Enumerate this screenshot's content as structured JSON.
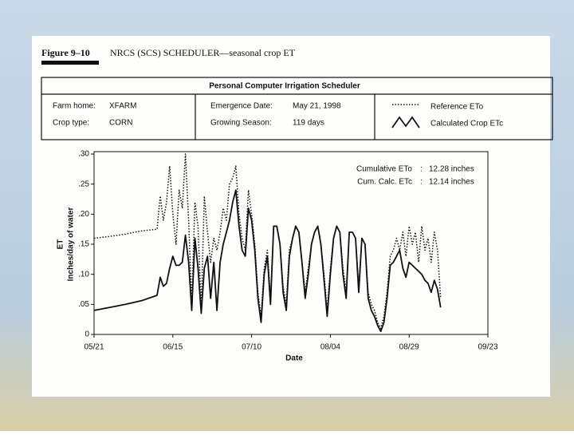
{
  "figure_label": "Figure 9–10",
  "figure_title": "NRCS (SCS) SCHEDULER—seasonal crop ET",
  "panel_title": "Personal Computer Irrigation Scheduler",
  "info": {
    "farm_home_label": "Farm home:",
    "farm_home": "XFARM",
    "crop_type_label": "Crop type:",
    "crop_type": "CORN",
    "emergence_label": "Emergence Date:",
    "emergence": "May 21, 1998",
    "season_label": "Growing Season:",
    "season": "119 days"
  },
  "chart_data": {
    "type": "line",
    "xlabel": "Date",
    "ylabel": [
      "ET",
      "Inches/day of water"
    ],
    "annotations": [
      {
        "label": "Cumulative ETo",
        "value": "12.28 inches"
      },
      {
        "label": "Cum. Calc. ETc",
        "value": "12.14 inches"
      }
    ],
    "xlim": [
      0,
      125
    ],
    "xticks": [
      {
        "value": 0,
        "label": "05/21"
      },
      {
        "value": 25,
        "label": "06/15"
      },
      {
        "value": 50,
        "label": "07/10"
      },
      {
        "value": 75,
        "label": "08/04"
      },
      {
        "value": 100,
        "label": "08/29"
      },
      {
        "value": 125,
        "label": "09/23"
      }
    ],
    "ylim": [
      0,
      0.3
    ],
    "yticks": [
      0,
      {
        "value": 0.05,
        "label": ".05"
      },
      {
        "value": 0.1,
        "label": ".10"
      },
      {
        "value": 0.15,
        "label": ".15"
      },
      {
        "value": 0.2,
        "label": ".20"
      },
      {
        "value": 0.25,
        "label": ".25"
      },
      {
        "value": 0.3,
        "label": ".30"
      }
    ],
    "x": [
      0,
      5,
      10,
      15,
      20,
      21,
      22,
      23,
      24,
      25,
      26,
      27,
      28,
      29,
      30,
      31,
      32,
      33,
      34,
      35,
      36,
      37,
      38,
      39,
      40,
      41,
      42,
      43,
      44,
      45,
      46,
      47,
      48,
      49,
      50,
      51,
      52,
      53,
      54,
      55,
      56,
      57,
      58,
      59,
      60,
      61,
      62,
      63,
      64,
      65,
      66,
      67,
      68,
      69,
      70,
      71,
      72,
      73,
      74,
      75,
      76,
      77,
      78,
      79,
      80,
      81,
      82,
      83,
      84,
      85,
      86,
      87,
      88,
      89,
      90,
      91,
      92,
      93,
      94,
      95,
      96,
      97,
      98,
      99,
      100,
      101,
      102,
      103,
      104,
      105,
      106,
      107,
      108,
      109,
      110
    ],
    "series": [
      {
        "name": "Reference ETo",
        "color": "#111111",
        "dash": "dotted",
        "values": [
          0.16,
          0.163,
          0.167,
          0.172,
          0.175,
          0.23,
          0.19,
          0.22,
          0.28,
          0.2,
          0.15,
          0.24,
          0.21,
          0.3,
          0.19,
          0.05,
          0.22,
          0.18,
          0.04,
          0.23,
          0.17,
          0.12,
          0.16,
          0.14,
          0.17,
          0.21,
          0.19,
          0.25,
          0.26,
          0.28,
          0.2,
          0.16,
          0.14,
          0.24,
          0.2,
          0.15,
          0.07,
          0.03,
          0.11,
          0.14,
          0.06,
          0.18,
          0.18,
          0.15,
          0.08,
          0.05,
          0.14,
          0.16,
          0.18,
          0.17,
          0.12,
          0.07,
          0.11,
          0.15,
          0.17,
          0.18,
          0.15,
          0.1,
          0.04,
          0.11,
          0.16,
          0.18,
          0.17,
          0.11,
          0.07,
          0.17,
          0.17,
          0.16,
          0.08,
          0.16,
          0.15,
          0.07,
          0.05,
          0.04,
          0.02,
          0.01,
          0.03,
          0.07,
          0.13,
          0.14,
          0.16,
          0.14,
          0.17,
          0.13,
          0.18,
          0.15,
          0.17,
          0.12,
          0.18,
          0.14,
          0.16,
          0.12,
          0.17,
          0.14,
          0.06
        ]
      },
      {
        "name": "Calculated Crop ETc",
        "color": "#111111",
        "dash": "solid",
        "values": [
          0.04,
          0.045,
          0.05,
          0.056,
          0.065,
          0.095,
          0.08,
          0.085,
          0.11,
          0.13,
          0.115,
          0.115,
          0.12,
          0.165,
          0.12,
          0.04,
          0.16,
          0.11,
          0.035,
          0.11,
          0.13,
          0.06,
          0.12,
          0.04,
          0.12,
          0.15,
          0.17,
          0.19,
          0.22,
          0.24,
          0.18,
          0.14,
          0.13,
          0.21,
          0.19,
          0.14,
          0.06,
          0.02,
          0.1,
          0.13,
          0.05,
          0.18,
          0.18,
          0.15,
          0.07,
          0.04,
          0.13,
          0.16,
          0.18,
          0.17,
          0.12,
          0.06,
          0.1,
          0.15,
          0.17,
          0.18,
          0.15,
          0.09,
          0.03,
          0.1,
          0.16,
          0.18,
          0.17,
          0.1,
          0.06,
          0.17,
          0.17,
          0.16,
          0.07,
          0.16,
          0.15,
          0.06,
          0.04,
          0.03,
          0.015,
          0.005,
          0.02,
          0.06,
          0.115,
          0.12,
          0.13,
          0.14,
          0.11,
          0.095,
          0.12,
          0.115,
          0.11,
          0.105,
          0.1,
          0.09,
          0.085,
          0.07,
          0.09,
          0.075,
          0.045
        ]
      }
    ]
  }
}
